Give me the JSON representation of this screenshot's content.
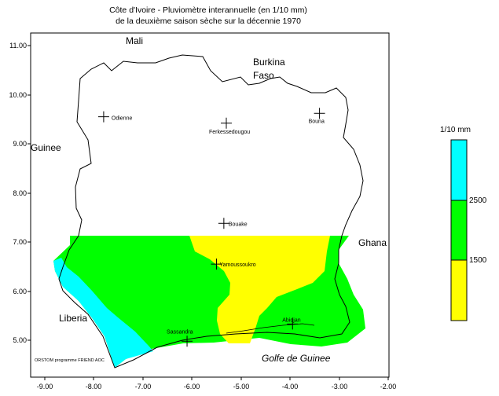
{
  "title": {
    "line1": "Côte d'Ivoire - Pluviomètre interannuelle (en 1/10 mm)",
    "line2": "de la deuxième saison sèche sur la décennie 1970"
  },
  "axes": {
    "x_ticks": [
      "-9.00",
      "-8.00",
      "-7.00",
      "-6.00",
      "-5.00",
      "-4.00",
      "-3.00",
      "-2.00"
    ],
    "y_ticks": [
      "11.00",
      "10.00",
      "9.00",
      "8.00",
      "7.00",
      "6.00",
      "5.00"
    ],
    "x_range": [
      -9.3,
      -1.5
    ],
    "y_range": [
      4.3,
      11.3
    ]
  },
  "regions": {
    "mali": "Mali",
    "burkina_1": "Burkina",
    "burkina_2": "Faso",
    "guinee": "Guinee",
    "ghana": "Ghana",
    "liberia": "Liberia",
    "golfe": "Golfe de Guinee"
  },
  "cities": [
    {
      "name": "Odienne",
      "lon": -7.8,
      "lat": 9.55
    },
    {
      "name": "Ferkessedougou",
      "lon": -5.3,
      "lat": 9.42
    },
    {
      "name": "Bouna",
      "lon": -3.4,
      "lat": 9.62
    },
    {
      "name": "Bouake",
      "lon": -5.35,
      "lat": 7.38
    },
    {
      "name": "Yamoussoukro",
      "lon": -5.5,
      "lat": 6.55
    },
    {
      "name": "Sassandra",
      "lon": -6.1,
      "lat": 4.98
    },
    {
      "name": "Abidjan",
      "lon": -3.95,
      "lat": 5.33
    }
  ],
  "legend": {
    "title": "1/10 mm",
    "breaks": [
      "2500",
      "1500"
    ],
    "colors": {
      "high": "#00ffff",
      "mid": "#00ff00",
      "low": "#ffff00"
    }
  },
  "credit": "ORSTOM programme FRIEND AOC"
}
